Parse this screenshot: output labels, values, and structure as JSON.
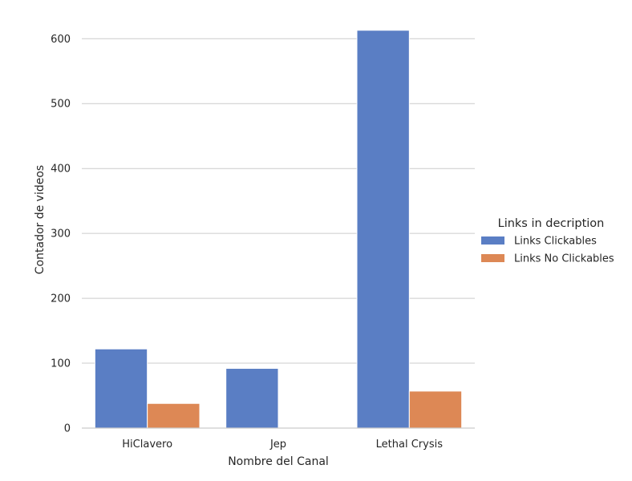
{
  "chart_data": {
    "type": "bar",
    "title": "",
    "xlabel": "Nombre del Canal",
    "ylabel": "Contador de videos",
    "categories": [
      "HiClavero",
      "Jep",
      "Lethal Crysis"
    ],
    "series": [
      {
        "name": "Links Clickables",
        "values": [
          122,
          92,
          613
        ],
        "color": "#5a7ec4"
      },
      {
        "name": "Links No Clickables",
        "values": [
          38,
          0,
          57
        ],
        "color": "#dd8855"
      }
    ],
    "ylim": [
      0,
      630
    ],
    "yticks": [
      0,
      100,
      200,
      300,
      400,
      500,
      600
    ],
    "grid": "horizontal",
    "legend": {
      "title": "Links in decription",
      "placement": "right"
    }
  }
}
